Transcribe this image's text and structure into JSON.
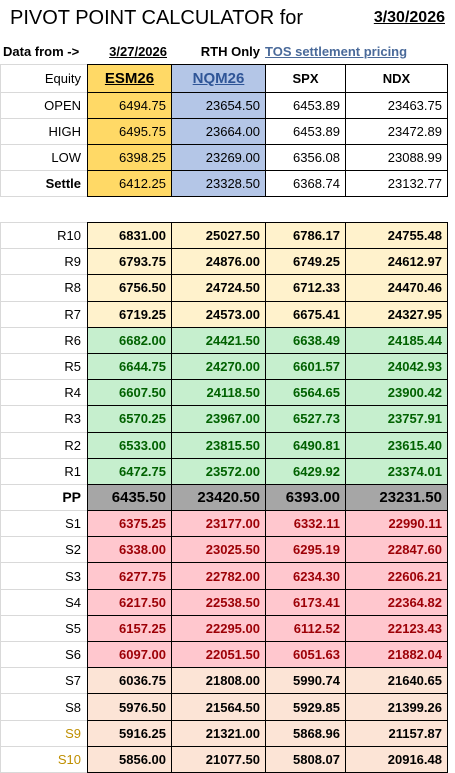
{
  "header": {
    "title": "PIVOT POINT CALCULATOR for",
    "date": "3/30/2026"
  },
  "info": {
    "data_from_label": "Data from ->",
    "data_from_date": "3/27/2026",
    "session": "RTH Only",
    "source": "TOS settlement pricing"
  },
  "table": {
    "columns": [
      "Equity",
      "ESM26",
      "NQM26",
      "SPX",
      "NDX"
    ],
    "rows": [
      [
        "OPEN",
        "6494.75",
        "23654.50",
        "6453.89",
        "23463.75"
      ],
      [
        "HIGH",
        "6495.75",
        "23664.00",
        "6453.89",
        "23472.89"
      ],
      [
        "LOW",
        "6398.25",
        "23269.00",
        "6356.08",
        "23088.99"
      ],
      [
        "Settle",
        "6412.25",
        "23328.50",
        "6368.74",
        "23132.77"
      ]
    ]
  },
  "levels": {
    "rows": [
      [
        "R10",
        "6831.00",
        "25027.50",
        "6786.17",
        "24755.48"
      ],
      [
        "R9",
        "6793.75",
        "24876.00",
        "6749.25",
        "24612.97"
      ],
      [
        "R8",
        "6756.50",
        "24724.50",
        "6712.33",
        "24470.46"
      ],
      [
        "R7",
        "6719.25",
        "24573.00",
        "6675.41",
        "24327.95"
      ],
      [
        "R6",
        "6682.00",
        "24421.50",
        "6638.49",
        "24185.44"
      ],
      [
        "R5",
        "6644.75",
        "24270.00",
        "6601.57",
        "24042.93"
      ],
      [
        "R4",
        "6607.50",
        "24118.50",
        "6564.65",
        "23900.42"
      ],
      [
        "R3",
        "6570.25",
        "23967.00",
        "6527.73",
        "23757.91"
      ],
      [
        "R2",
        "6533.00",
        "23815.50",
        "6490.81",
        "23615.40"
      ],
      [
        "R1",
        "6472.75",
        "23572.00",
        "6429.92",
        "23374.01"
      ],
      [
        "PP",
        "6435.50",
        "23420.50",
        "6393.00",
        "23231.50"
      ],
      [
        "S1",
        "6375.25",
        "23177.00",
        "6332.11",
        "22990.11"
      ],
      [
        "S2",
        "6338.00",
        "23025.50",
        "6295.19",
        "22847.60"
      ],
      [
        "S3",
        "6277.75",
        "22782.00",
        "6234.30",
        "22606.21"
      ],
      [
        "S4",
        "6217.50",
        "22538.50",
        "6173.41",
        "22364.82"
      ],
      [
        "S5",
        "6157.25",
        "22295.00",
        "6112.52",
        "22123.43"
      ],
      [
        "S6",
        "6097.00",
        "22051.50",
        "6051.63",
        "21882.04"
      ],
      [
        "S7",
        "6036.75",
        "21808.00",
        "5990.74",
        "21640.65"
      ],
      [
        "S8",
        "5976.50",
        "21564.50",
        "5929.85",
        "21399.26"
      ],
      [
        "S9",
        "5916.25",
        "21321.00",
        "5868.96",
        "21157.87"
      ],
      [
        "S10",
        "5856.00",
        "21077.50",
        "5808.07",
        "20916.48"
      ]
    ]
  }
}
